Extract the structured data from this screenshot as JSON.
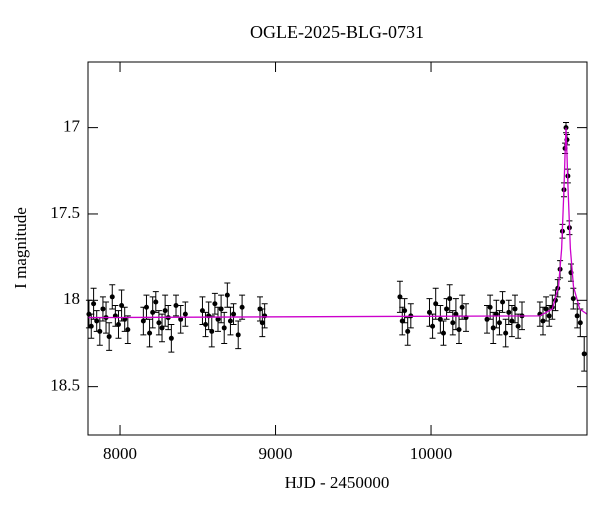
{
  "chart_data": {
    "type": "scatter",
    "title": "OGLE-2025-BLG-0731",
    "x_label": "HJD - 2450000",
    "y_label": "I magnitude",
    "xlim": [
      7794,
      11003
    ],
    "ylim": [
      18.78,
      16.62
    ],
    "xticks": [
      8000,
      9000,
      10000
    ],
    "yticks": [
      17,
      17.5,
      18,
      18.5
    ],
    "series": [
      {
        "color": "#000000",
        "x": [
          7800,
          7815,
          7830,
          7850,
          7870,
          7890,
          7910,
          7930,
          7950,
          7970,
          7990,
          8010,
          8030,
          8050,
          8150,
          8170,
          8190,
          8210,
          8230,
          8250,
          8270,
          8290,
          8310,
          8330,
          8360,
          8390,
          8420,
          8530,
          8550,
          8570,
          8590,
          8610,
          8630,
          8650,
          8670,
          8690,
          8710,
          8730,
          8760,
          8785,
          8900,
          8915,
          8930,
          9800,
          9815,
          9830,
          9850,
          9870,
          9990,
          10010,
          10030,
          10060,
          10080,
          10100,
          10120,
          10140,
          10160,
          10180,
          10200,
          10225,
          10360,
          10380,
          10400,
          10420,
          10440,
          10460,
          10480,
          10500,
          10520,
          10540,
          10560,
          10585,
          10700,
          10720,
          10740,
          10760,
          10780,
          10800,
          10815,
          10830,
          10845,
          10855,
          10862,
          10868,
          10874,
          10880,
          10890,
          10900,
          10915,
          10940,
          10960,
          10985
        ],
        "values": [
          18.08,
          18.15,
          18.02,
          18.12,
          18.18,
          18.05,
          18.1,
          18.21,
          17.98,
          18.09,
          18.14,
          18.03,
          18.11,
          18.17,
          18.12,
          18.04,
          18.19,
          18.07,
          18.01,
          18.13,
          18.16,
          18.06,
          18.1,
          18.22,
          18.03,
          18.11,
          18.08,
          18.06,
          18.14,
          18.09,
          18.18,
          18.02,
          18.11,
          18.05,
          18.16,
          17.97,
          18.12,
          18.08,
          18.2,
          18.04,
          18.05,
          18.13,
          18.09,
          17.98,
          18.12,
          18.06,
          18.18,
          18.09,
          18.07,
          18.15,
          18.02,
          18.11,
          18.19,
          18.05,
          17.99,
          18.13,
          18.08,
          18.17,
          18.04,
          18.1,
          18.11,
          18.04,
          18.16,
          18.08,
          18.13,
          18.01,
          18.19,
          18.07,
          18.12,
          18.05,
          18.15,
          18.09,
          18.08,
          18.12,
          18.05,
          18.09,
          18.04,
          18.0,
          17.93,
          17.82,
          17.6,
          17.36,
          17.12,
          17.0,
          17.07,
          17.28,
          17.58,
          17.84,
          17.99,
          18.09,
          18.13,
          18.31
        ],
        "errors": [
          0.08,
          0.07,
          0.09,
          0.06,
          0.08,
          0.07,
          0.09,
          0.08,
          0.07,
          0.06,
          0.08,
          0.09,
          0.07,
          0.08,
          0.08,
          0.07,
          0.08,
          0.09,
          0.06,
          0.07,
          0.08,
          0.09,
          0.07,
          0.08,
          0.06,
          0.08,
          0.07,
          0.08,
          0.07,
          0.08,
          0.09,
          0.06,
          0.07,
          0.08,
          0.09,
          0.07,
          0.08,
          0.06,
          0.08,
          0.07,
          0.07,
          0.08,
          0.07,
          0.09,
          0.08,
          0.07,
          0.08,
          0.07,
          0.08,
          0.07,
          0.09,
          0.08,
          0.07,
          0.06,
          0.08,
          0.07,
          0.09,
          0.08,
          0.07,
          0.08,
          0.08,
          0.07,
          0.09,
          0.08,
          0.07,
          0.06,
          0.08,
          0.07,
          0.09,
          0.08,
          0.07,
          0.08,
          0.07,
          0.08,
          0.07,
          0.06,
          0.07,
          0.06,
          0.05,
          0.05,
          0.04,
          0.04,
          0.03,
          0.03,
          0.03,
          0.04,
          0.04,
          0.05,
          0.06,
          0.07,
          0.08,
          0.1
        ]
      },
      {
        "type": "line",
        "color": "#cc00cc",
        "x": [
          7794,
          10700,
          10780,
          10820,
          10840,
          10855,
          10862,
          10868,
          10874,
          10881,
          10896,
          10916,
          10956,
          11003
        ],
        "values": [
          18.1,
          18.09,
          18.05,
          17.92,
          17.7,
          17.35,
          17.15,
          17.0,
          17.15,
          17.35,
          17.7,
          17.92,
          18.05,
          18.08
        ]
      }
    ]
  }
}
